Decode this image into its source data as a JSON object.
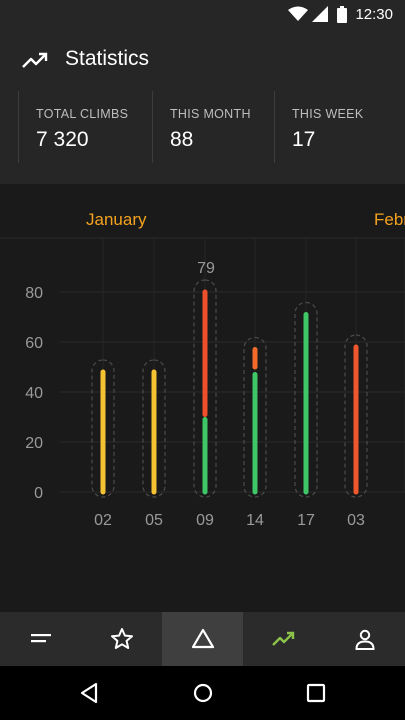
{
  "status_bar": {
    "time": "12:30"
  },
  "header": {
    "title": "Statistics",
    "icon": "trending-up-icon"
  },
  "stats": [
    {
      "label": "TOTAL CLIMBS",
      "value": "7 320"
    },
    {
      "label": "THIS MONTH",
      "value": "88"
    },
    {
      "label": "THIS WEEK",
      "value": "17"
    }
  ],
  "months": [
    "January",
    "Febr"
  ],
  "chart_data": {
    "type": "bar",
    "categories": [
      "02",
      "05",
      "09",
      "14",
      "17",
      "03"
    ],
    "yticks": [
      0,
      20,
      40,
      60,
      80
    ],
    "ylim": [
      0,
      100
    ],
    "bars": [
      {
        "segments": [
          {
            "from": 0,
            "to": 48,
            "color": "#f5c232"
          }
        ]
      },
      {
        "segments": [
          {
            "from": 0,
            "to": 48,
            "color": "#f5c232"
          }
        ]
      },
      {
        "segments": [
          {
            "from": 0,
            "to": 29,
            "color": "#3ec667"
          },
          {
            "from": 31,
            "to": 80,
            "color": "#f04f2c"
          }
        ],
        "label": "79"
      },
      {
        "segments": [
          {
            "from": 0,
            "to": 47,
            "color": "#3ec667"
          },
          {
            "from": 50,
            "to": 57,
            "color": "#f46a2a"
          }
        ]
      },
      {
        "segments": [
          {
            "from": 0,
            "to": 71,
            "color": "#3ec667"
          }
        ]
      },
      {
        "segments": [
          {
            "from": 0,
            "to": 58,
            "color": "#f0572c"
          }
        ]
      }
    ],
    "grid": true
  },
  "nav": [
    {
      "name": "list-icon"
    },
    {
      "name": "star-icon"
    },
    {
      "name": "triangle-icon"
    },
    {
      "name": "trending-up-icon"
    },
    {
      "name": "person-icon"
    }
  ],
  "colors": {
    "accent": "#f4a21f",
    "nav_active_icon": "#8bc34a"
  }
}
